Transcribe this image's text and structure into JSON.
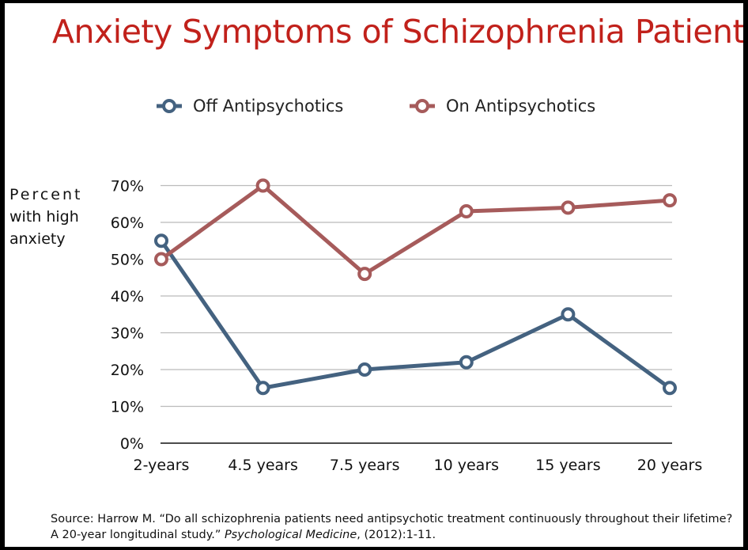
{
  "title": "Anxiety Symptoms of Schizophrenia Patients",
  "source": {
    "prefix": "Source: Harrow M. “Do all schizophrenia patients need antipsychotic treatment continuously throughout their lifetime? A 20-year longitudinal study.” ",
    "journal": "Psychological Medicine",
    "suffix": ", (2012):1-11."
  },
  "chart_data": {
    "type": "line",
    "title": "Anxiety Symptoms of Schizophrenia Patients",
    "ylabel_lines": [
      "Percent",
      "with high",
      "anxiety"
    ],
    "xlabel": "",
    "categories": [
      "2-years",
      "4.5 years",
      "7.5 years",
      "10 years",
      "15 years",
      "20 years"
    ],
    "yticks": [
      "0%",
      "10%",
      "20%",
      "30%",
      "40%",
      "50%",
      "60%",
      "70%"
    ],
    "ylim": [
      0,
      70
    ],
    "grid": true,
    "legend_position": "top",
    "series": [
      {
        "name": "Off Antipsychotics",
        "color": "#446280",
        "values": [
          55,
          15,
          20,
          22,
          35,
          15
        ]
      },
      {
        "name": "On Antipsychotics",
        "color": "#a65b5b",
        "values": [
          50,
          70,
          46,
          63,
          64,
          66
        ]
      }
    ]
  }
}
